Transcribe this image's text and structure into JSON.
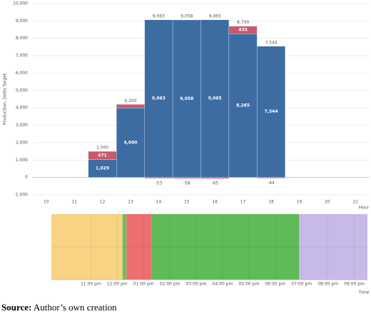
{
  "chart_data": [
    {
      "type": "stacked_bar",
      "y_label": "Production, Delta Target",
      "x_label": "Hour",
      "categories": [
        "10",
        "11",
        "12",
        "13",
        "14",
        "15",
        "16",
        "17",
        "18",
        "19",
        "20",
        "21"
      ],
      "series": [
        {
          "name": "Production",
          "color": "#3d6ca3",
          "values": [
            null,
            null,
            1029,
            4000,
            9063,
            9058,
            9065,
            8265,
            7544,
            null,
            null,
            null
          ],
          "value_labels": [
            null,
            null,
            "1,029",
            "4,000",
            "9,063",
            "9,058",
            "9,065",
            "8,265",
            "7,544",
            null,
            null,
            null
          ]
        },
        {
          "name": "Delta Target",
          "color": "#c9596b",
          "values": [
            null,
            null,
            471,
            200,
            -53,
            -58,
            -65,
            435,
            -44,
            null,
            null,
            null
          ],
          "value_labels": [
            null,
            null,
            "471",
            null,
            "-53",
            "-58",
            "-65",
            "435",
            "-44",
            null,
            null,
            null
          ]
        }
      ],
      "total_labels": [
        null,
        null,
        "1,500",
        "4,200",
        "9,063",
        "9,058",
        "9,065",
        "8,700",
        "7,544",
        null,
        null,
        null
      ],
      "ylim": [
        -1000,
        10000
      ],
      "yticks": [
        {
          "value": -1000,
          "label": "-1,000"
        },
        0,
        {
          "value": 1000,
          "label": "1,000"
        },
        {
          "value": 2000,
          "label": "2,000"
        },
        {
          "value": 3000,
          "label": "3,000"
        },
        {
          "value": 4000,
          "label": "4,000"
        },
        {
          "value": 5000,
          "label": "5,000"
        },
        {
          "value": 6000,
          "label": "6,000"
        },
        {
          "value": 7000,
          "label": "7,000"
        },
        {
          "value": 8000,
          "label": "8,000"
        },
        {
          "value": 9000,
          "label": "9,000"
        },
        {
          "value": 10000,
          "label": "10,000"
        }
      ],
      "grid": true
    },
    {
      "type": "timeline",
      "x_label": "Time",
      "xlim": [
        9.5,
        21.5
      ],
      "xticks": [
        {
          "value": 11,
          "label": "11:00 pm"
        },
        {
          "value": 12,
          "label": "12:00 pm"
        },
        {
          "value": 13,
          "label": "01:00 pm"
        },
        {
          "value": 14,
          "label": "02:00 pm"
        },
        {
          "value": 15,
          "label": "03:00 pm"
        },
        {
          "value": 16,
          "label": "04:00 pm"
        },
        {
          "value": 17,
          "label": "05:00 pm"
        },
        {
          "value": 18,
          "label": "06:00 pm"
        },
        {
          "value": 19,
          "label": "07:00 pm"
        },
        {
          "value": 20,
          "label": "08:00 pm"
        },
        {
          "value": 21,
          "label": "09:00 pm"
        }
      ],
      "segments": [
        {
          "start": 9.5,
          "end": 12.2,
          "color": "#f8d384"
        },
        {
          "start": 12.2,
          "end": 12.35,
          "color": "#6cbf5a"
        },
        {
          "start": 12.35,
          "end": 13.3,
          "color": "#ec6f6f"
        },
        {
          "start": 13.3,
          "end": 18.9,
          "color": "#5fba58"
        },
        {
          "start": 18.9,
          "end": 21.5,
          "color": "#c7b9ea"
        }
      ]
    }
  ],
  "source_label": "Source:",
  "source_text": "Author’s own creation"
}
